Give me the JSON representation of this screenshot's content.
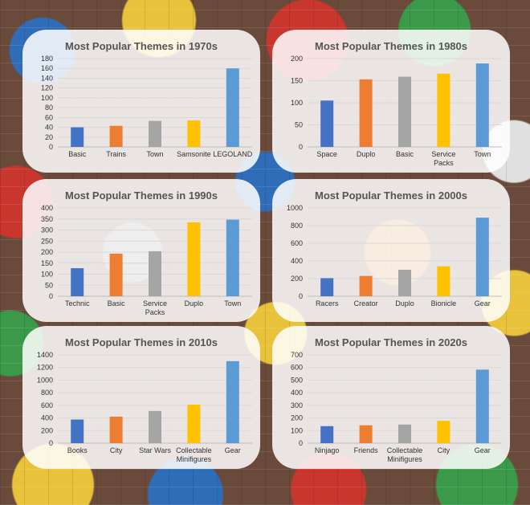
{
  "chart_data": [
    {
      "type": "bar",
      "title": "Most Popular Themes in 1970s",
      "categories": [
        "Basic",
        "Trains",
        "Town",
        "Samsonite",
        "LEGOLAND"
      ],
      "values": [
        40,
        43,
        53,
        54,
        160
      ],
      "colors": [
        "#4472C4",
        "#ED7D31",
        "#A5A5A5",
        "#FFC000",
        "#5B9BD5"
      ],
      "ylim": [
        0,
        180
      ],
      "ystep": 20,
      "grid": true,
      "legend": "none"
    },
    {
      "type": "bar",
      "title": "Most Popular Themes in 1980s",
      "categories": [
        "Space",
        "Duplo",
        "Basic",
        "Service Packs",
        "Town"
      ],
      "values": [
        105,
        153,
        159,
        166,
        189
      ],
      "colors": [
        "#4472C4",
        "#ED7D31",
        "#A5A5A5",
        "#FFC000",
        "#5B9BD5"
      ],
      "ylim": [
        0,
        200
      ],
      "ystep": 50,
      "grid": true,
      "legend": "none"
    },
    {
      "type": "bar",
      "title": "Most Popular Themes in 1990s",
      "categories": [
        "Technic",
        "Basic",
        "Service Packs",
        "Duplo",
        "Town"
      ],
      "values": [
        127,
        193,
        204,
        335,
        347
      ],
      "colors": [
        "#4472C4",
        "#ED7D31",
        "#A5A5A5",
        "#FFC000",
        "#5B9BD5"
      ],
      "ylim": [
        0,
        400
      ],
      "ystep": 50,
      "grid": true,
      "legend": "none"
    },
    {
      "type": "bar",
      "title": "Most Popular Themes in 2000s",
      "categories": [
        "Racers",
        "Creator",
        "Duplo",
        "Bionicle",
        "Gear"
      ],
      "values": [
        205,
        230,
        300,
        340,
        890
      ],
      "colors": [
        "#4472C4",
        "#ED7D31",
        "#A5A5A5",
        "#FFC000",
        "#5B9BD5"
      ],
      "ylim": [
        0,
        1000
      ],
      "ystep": 200,
      "grid": true,
      "legend": "none"
    },
    {
      "type": "bar",
      "title": "Most Popular Themes in 2010s",
      "categories": [
        "Books",
        "City",
        "Star Wars",
        "Collectable Minifigures",
        "Gear"
      ],
      "values": [
        375,
        420,
        510,
        610,
        1300
      ],
      "colors": [
        "#4472C4",
        "#ED7D31",
        "#A5A5A5",
        "#FFC000",
        "#5B9BD5"
      ],
      "ylim": [
        0,
        1400
      ],
      "ystep": 200,
      "grid": true,
      "legend": "none"
    },
    {
      "type": "bar",
      "title": "Most Popular Themes in 2020s",
      "categories": [
        "Ninjago",
        "Friends",
        "Collectable Minifigures",
        "City",
        "Gear"
      ],
      "values": [
        135,
        142,
        148,
        177,
        583
      ],
      "colors": [
        "#4472C4",
        "#ED7D31",
        "#A5A5A5",
        "#FFC000",
        "#5B9BD5"
      ],
      "ylim": [
        0,
        700
      ],
      "ystep": 100,
      "grid": true,
      "legend": "none"
    }
  ],
  "category_line_breaks": {
    "Service Packs": [
      "Service",
      "Packs"
    ],
    "Collectable Minifigures": [
      "Collectable",
      "Minifigures"
    ]
  }
}
